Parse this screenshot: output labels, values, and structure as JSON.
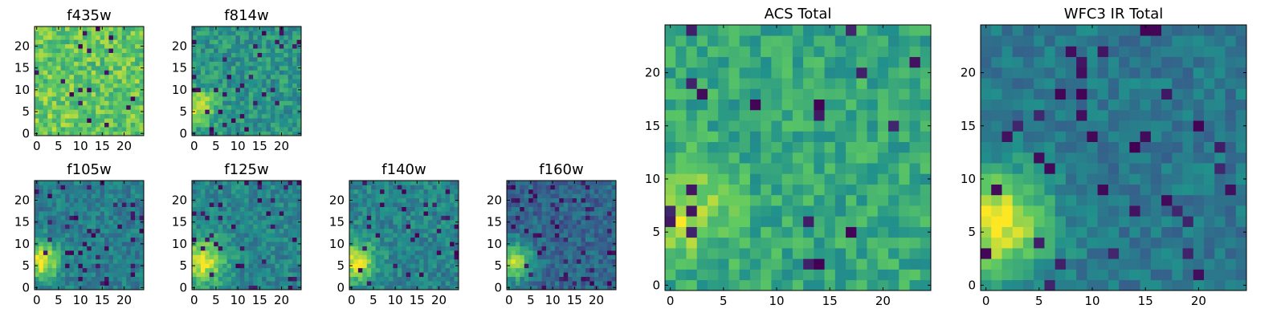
{
  "chart_data": {
    "type": "heatmap",
    "colormap": "viridis",
    "colormap_stops": [
      "#440154",
      "#3b528b",
      "#21918c",
      "#5ec962",
      "#fde725"
    ],
    "grid_size": 25,
    "origin": "lower",
    "panels": [
      {
        "id": "f435w",
        "title": "f435w",
        "xticks": [
          0,
          5,
          10,
          15,
          20
        ],
        "yticks": [
          0,
          5,
          10,
          15,
          20
        ],
        "peak": {
          "x": 4,
          "y": 6,
          "sigma": 3,
          "amp": 0.05
        },
        "base": 0.74,
        "noise": 0.16,
        "dark_fraction": 0.02,
        "seed": 11
      },
      {
        "id": "f814w",
        "title": "f814w",
        "xticks": [
          0,
          5,
          10,
          15,
          20
        ],
        "yticks": [
          0,
          5,
          10,
          15,
          20
        ],
        "peak": {
          "x": 1,
          "y": 6,
          "sigma": 2.6,
          "amp": 0.45
        },
        "base": 0.52,
        "noise": 0.14,
        "dark_fraction": 0.05,
        "seed": 23
      },
      {
        "id": "f105w",
        "title": "f105w",
        "xticks": [
          0,
          5,
          10,
          15,
          20
        ],
        "yticks": [
          0,
          5,
          10,
          15,
          20
        ],
        "peak": {
          "x": 1,
          "y": 6,
          "sigma": 3.0,
          "amp": 0.55
        },
        "base": 0.42,
        "noise": 0.12,
        "dark_fraction": 0.06,
        "seed": 37
      },
      {
        "id": "f125w",
        "title": "f125w",
        "xticks": [
          0,
          5,
          10,
          15,
          20
        ],
        "yticks": [
          0,
          5,
          10,
          15,
          20
        ],
        "peak": {
          "x": 2,
          "y": 6,
          "sigma": 3.6,
          "amp": 0.5
        },
        "base": 0.45,
        "noise": 0.12,
        "dark_fraction": 0.05,
        "seed": 41
      },
      {
        "id": "f140w",
        "title": "f140w",
        "xticks": [
          0,
          5,
          10,
          15,
          20
        ],
        "yticks": [
          0,
          5,
          10,
          15,
          20
        ],
        "peak": {
          "x": 1,
          "y": 6,
          "sigma": 3.2,
          "amp": 0.5
        },
        "base": 0.45,
        "noise": 0.12,
        "dark_fraction": 0.05,
        "seed": 53
      },
      {
        "id": "f160w",
        "title": "f160w",
        "xticks": [
          0,
          5,
          10,
          15,
          20
        ],
        "yticks": [
          0,
          5,
          10,
          15,
          20
        ],
        "peak": {
          "x": 1,
          "y": 6,
          "sigma": 3.0,
          "amp": 0.55
        },
        "base": 0.33,
        "noise": 0.12,
        "dark_fraction": 0.07,
        "seed": 67
      },
      {
        "id": "acs-total",
        "title": "ACS Total",
        "xticks": [
          0,
          5,
          10,
          15,
          20
        ],
        "yticks": [
          0,
          5,
          10,
          15,
          20
        ],
        "peak": {
          "x": 1,
          "y": 7,
          "sigma": 3.0,
          "amp": 0.3
        },
        "base": 0.6,
        "noise": 0.13,
        "dark_fraction": 0.04,
        "seed": 79
      },
      {
        "id": "wfc3-ir-total",
        "title": "WFC3 IR Total",
        "xticks": [
          0,
          5,
          10,
          15,
          20
        ],
        "yticks": [
          0,
          5,
          10,
          15,
          20
        ],
        "peak": {
          "x": 1,
          "y": 6,
          "sigma": 3.4,
          "amp": 0.6
        },
        "base": 0.4,
        "noise": 0.1,
        "dark_fraction": 0.06,
        "seed": 97
      }
    ]
  }
}
